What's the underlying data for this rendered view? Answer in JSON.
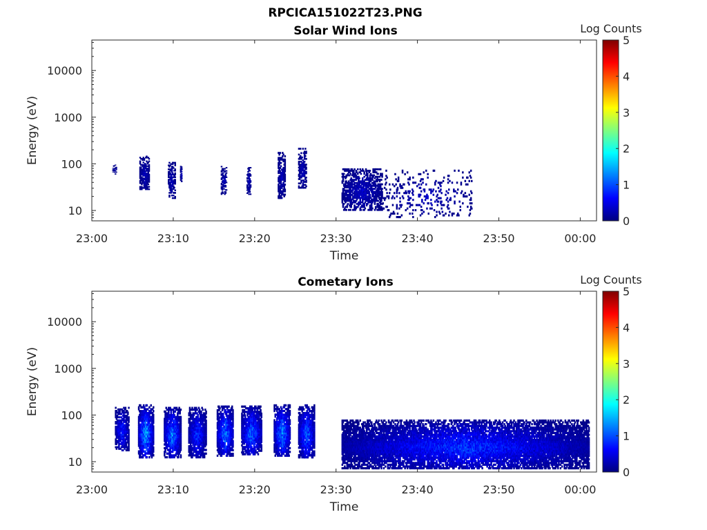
{
  "page": {
    "title": "RPCICA151022T23.PNG"
  },
  "chart_data": [
    {
      "type": "heatmap",
      "title": "Solar Wind Ions",
      "xlabel": "Time",
      "ylabel": "Energy (eV)",
      "yscale": "log",
      "ylim": [
        6,
        45000
      ],
      "xlim": [
        "23:00",
        "00:02"
      ],
      "x_ticks": [
        "23:00",
        "23:10",
        "23:20",
        "23:30",
        "23:40",
        "23:50",
        "00:00"
      ],
      "y_ticks": [
        "10",
        "100",
        "1000",
        "10000"
      ],
      "colorbar": {
        "label": "Log Counts",
        "ticks": [
          "0",
          "1",
          "2",
          "3",
          "4",
          "5"
        ],
        "range": [
          0,
          5
        ]
      },
      "bursts": [
        {
          "start": "23:02:30",
          "end": "23:03:00",
          "emin": 60,
          "emax": 100,
          "level": 0.2,
          "density": 0.3
        },
        {
          "start": "23:05:50",
          "end": "23:07:00",
          "emin": 28,
          "emax": 150,
          "level": 0.3,
          "density": 0.6
        },
        {
          "start": "23:09:20",
          "end": "23:10:10",
          "emin": 18,
          "emax": 110,
          "level": 0.3,
          "density": 0.5
        },
        {
          "start": "23:10:50",
          "end": "23:11:00",
          "emin": 40,
          "emax": 100,
          "level": 0.3,
          "density": 0.7
        },
        {
          "start": "23:15:50",
          "end": "23:16:30",
          "emin": 22,
          "emax": 95,
          "level": 0.3,
          "density": 0.4
        },
        {
          "start": "23:19:00",
          "end": "23:19:30",
          "emin": 22,
          "emax": 90,
          "level": 0.3,
          "density": 0.5
        },
        {
          "start": "23:22:50",
          "end": "23:23:40",
          "emin": 18,
          "emax": 180,
          "level": 0.3,
          "density": 0.6
        },
        {
          "start": "23:25:20",
          "end": "23:26:20",
          "emin": 30,
          "emax": 220,
          "level": 0.3,
          "density": 0.5
        },
        {
          "start": "23:30:40",
          "end": "23:35:40",
          "emin": 10,
          "emax": 80,
          "level": 0.35,
          "density": 0.55
        },
        {
          "start": "23:35:40",
          "end": "23:46:40",
          "emin": 7,
          "emax": 75,
          "level": 0.3,
          "density": 0.1
        }
      ]
    },
    {
      "type": "heatmap",
      "title": "Cometary Ions",
      "xlabel": "Time",
      "ylabel": "Energy (eV)",
      "yscale": "log",
      "ylim": [
        6,
        45000
      ],
      "xlim": [
        "23:00",
        "00:02"
      ],
      "x_ticks": [
        "23:00",
        "23:10",
        "23:20",
        "23:30",
        "23:40",
        "23:50",
        "00:00"
      ],
      "y_ticks": [
        "10",
        "100",
        "1000",
        "10000"
      ],
      "colorbar": {
        "label": "Log Counts",
        "ticks": [
          "0",
          "1",
          "2",
          "3",
          "4",
          "5"
        ],
        "range": [
          0,
          5
        ]
      },
      "bursts": [
        {
          "start": "23:02:50",
          "end": "23:04:30",
          "emin": 17,
          "emax": 150,
          "level": 0.8,
          "density": 0.7
        },
        {
          "start": "23:05:40",
          "end": "23:07:30",
          "emin": 12,
          "emax": 170,
          "level": 1.5,
          "density": 0.85
        },
        {
          "start": "23:08:50",
          "end": "23:10:50",
          "emin": 12,
          "emax": 150,
          "level": 1.3,
          "density": 0.85
        },
        {
          "start": "23:11:50",
          "end": "23:14:00",
          "emin": 12,
          "emax": 150,
          "level": 0.9,
          "density": 0.75
        },
        {
          "start": "23:15:20",
          "end": "23:17:20",
          "emin": 13,
          "emax": 160,
          "level": 1.3,
          "density": 0.8
        },
        {
          "start": "23:18:20",
          "end": "23:20:50",
          "emin": 14,
          "emax": 160,
          "level": 1.2,
          "density": 0.8
        },
        {
          "start": "23:22:20",
          "end": "23:24:20",
          "emin": 13,
          "emax": 170,
          "level": 1.4,
          "density": 0.85
        },
        {
          "start": "23:25:20",
          "end": "23:27:20",
          "emin": 12,
          "emax": 170,
          "level": 1.2,
          "density": 0.8
        },
        {
          "start": "23:30:40",
          "end": "00:01:00",
          "emin": 7,
          "emax": 80,
          "level": 0.9,
          "density": 0.8
        }
      ]
    }
  ],
  "colors": {
    "colormap": [
      "#00007f",
      "#0000ff",
      "#007fff",
      "#00ffff",
      "#7fff7f",
      "#ffff00",
      "#ff7f00",
      "#ff0000",
      "#7f0000"
    ]
  }
}
